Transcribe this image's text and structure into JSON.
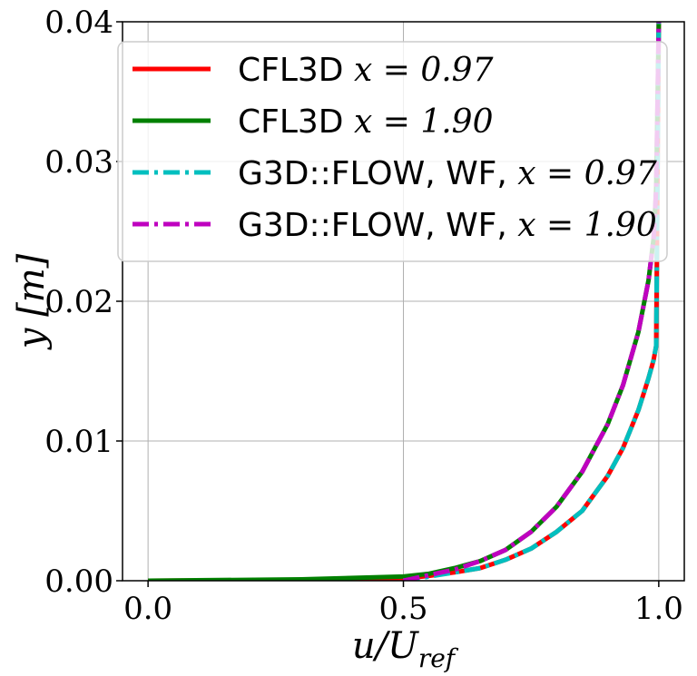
{
  "chart_data": {
    "type": "line",
    "xlabel": "u/U_ref",
    "ylabel": "y [m]",
    "xlim": [
      -0.05,
      1.05
    ],
    "ylim": [
      0.0,
      0.04
    ],
    "x_ticks": [
      "0.0",
      "0.5",
      "1.0"
    ],
    "x_tick_values": [
      0.0,
      0.5,
      1.0
    ],
    "y_ticks": [
      "0.00",
      "0.01",
      "0.02",
      "0.03",
      "0.04"
    ],
    "y_tick_values": [
      0.0,
      0.01,
      0.02,
      0.03,
      0.04
    ],
    "grid": true,
    "legend_position": "upper",
    "series": [
      {
        "name": "CFL3D x = 0.97",
        "color": "#ff0000",
        "style": "solid",
        "x": [
          0.0,
          0.3,
          0.5,
          0.55,
          0.6,
          0.65,
          0.7,
          0.75,
          0.8,
          0.85,
          0.9,
          0.93,
          0.96,
          0.98,
          0.99,
          0.995,
          1.0
        ],
        "y": [
          0.0,
          5e-05,
          0.00015,
          0.00035,
          0.0006,
          0.0009,
          0.0015,
          0.0023,
          0.0035,
          0.005,
          0.0075,
          0.0095,
          0.0122,
          0.0145,
          0.0158,
          0.0168,
          0.04
        ]
      },
      {
        "name": "CFL3D x = 1.90",
        "color": "#008000",
        "style": "solid",
        "x": [
          0.0,
          0.3,
          0.5,
          0.55,
          0.6,
          0.65,
          0.7,
          0.75,
          0.8,
          0.85,
          0.9,
          0.93,
          0.96,
          0.98,
          0.99,
          0.995,
          1.0
        ],
        "y": [
          0.0,
          0.0001,
          0.0003,
          0.0005,
          0.0009,
          0.0014,
          0.0022,
          0.0035,
          0.0053,
          0.0078,
          0.0112,
          0.014,
          0.0178,
          0.0215,
          0.0245,
          0.028,
          0.04
        ]
      },
      {
        "name": "G3D::FLOW, WF, x = 0.97",
        "color": "#00bfbf",
        "style": "dashdot",
        "x": [
          0.5,
          0.55,
          0.6,
          0.65,
          0.7,
          0.75,
          0.8,
          0.85,
          0.9,
          0.93,
          0.96,
          0.98,
          0.99,
          0.995,
          1.0
        ],
        "y": [
          0.0,
          0.0003,
          0.0006,
          0.0009,
          0.0015,
          0.0023,
          0.0035,
          0.005,
          0.0075,
          0.0095,
          0.0122,
          0.0145,
          0.0158,
          0.0168,
          0.04
        ]
      },
      {
        "name": "G3D::FLOW, WF, x = 1.90",
        "color": "#bf00bf",
        "style": "dashdot",
        "x": [
          0.5,
          0.55,
          0.6,
          0.65,
          0.7,
          0.75,
          0.8,
          0.85,
          0.9,
          0.93,
          0.96,
          0.98,
          0.99,
          0.995,
          1.0
        ],
        "y": [
          0.0,
          0.0004,
          0.0008,
          0.0014,
          0.0022,
          0.0035,
          0.0053,
          0.0078,
          0.0112,
          0.014,
          0.0178,
          0.0215,
          0.0245,
          0.028,
          0.04
        ]
      }
    ],
    "legend": [
      {
        "prefix": "CFL3D ",
        "math": "x = 0.97"
      },
      {
        "prefix": "CFL3D ",
        "math": "x = 1.90"
      },
      {
        "prefix": "G3D::FLOW, WF, ",
        "math": "x = 0.97"
      },
      {
        "prefix": "G3D::FLOW, WF, ",
        "math": "x = 1.90"
      }
    ]
  }
}
